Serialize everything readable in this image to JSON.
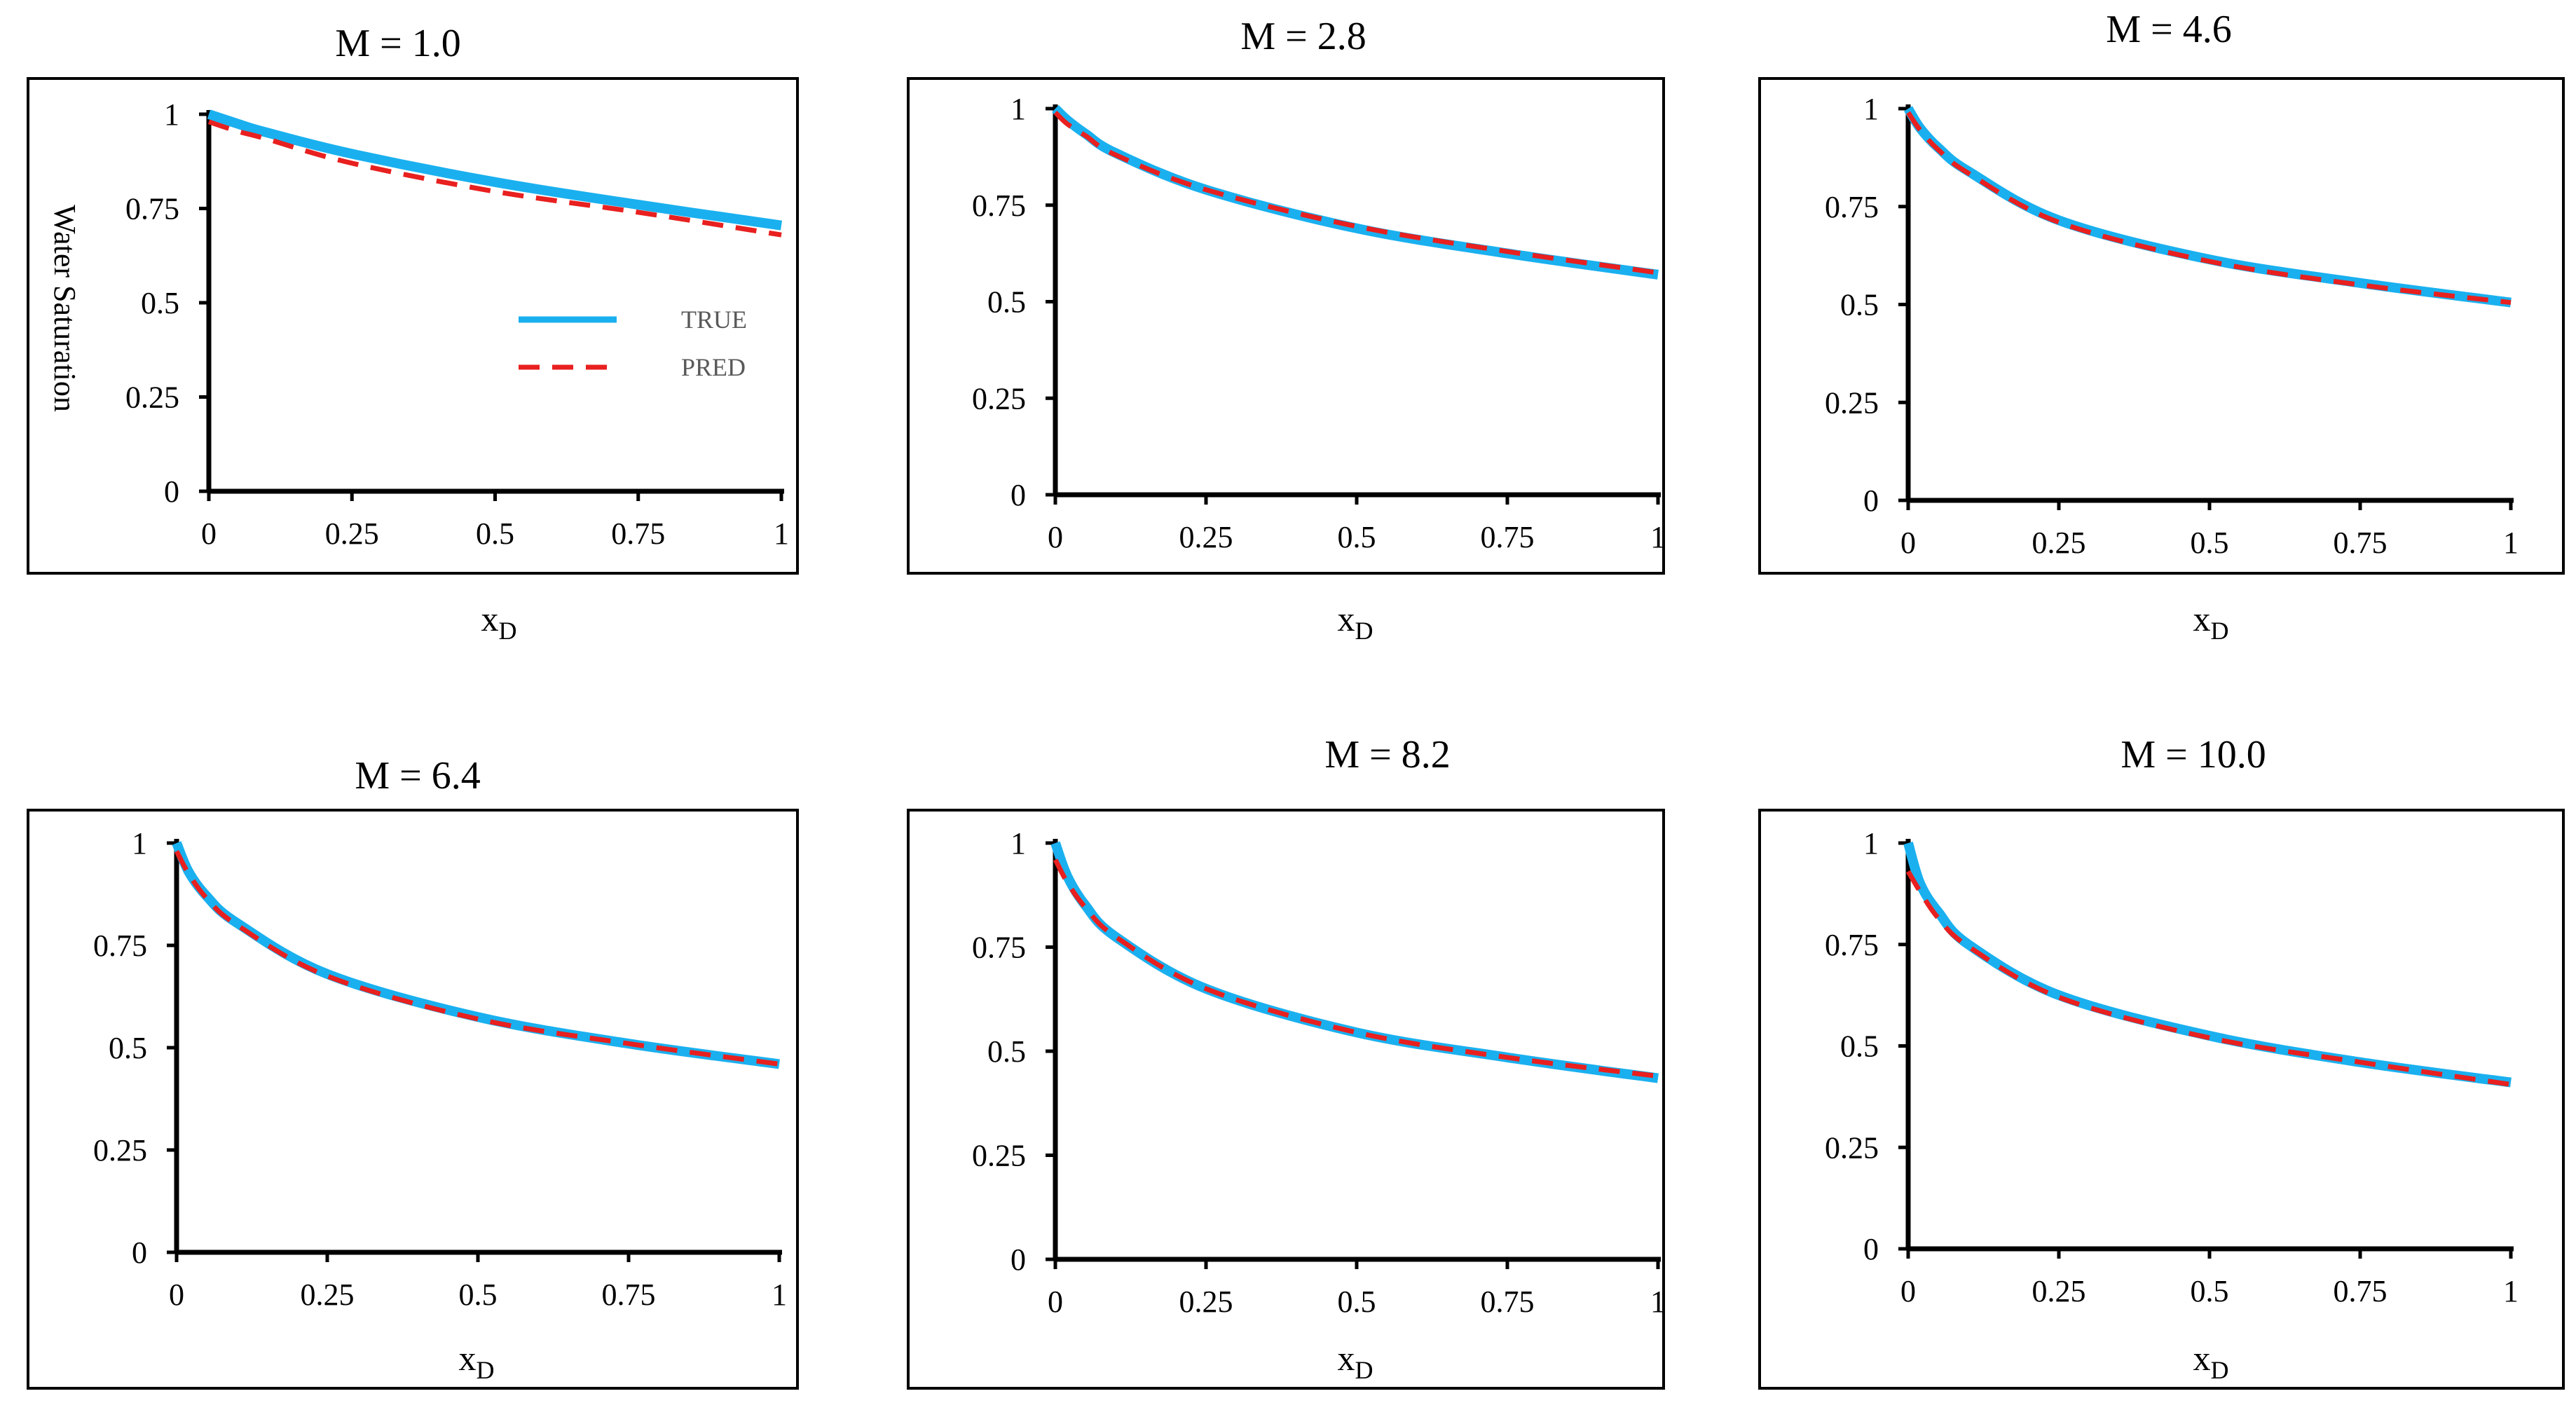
{
  "figure": {
    "name": "water-saturation-profiles"
  },
  "chart_data": [
    {
      "type": "line",
      "title": "M = 1.0",
      "xlabel_main": "x",
      "xlabel_sub": "D",
      "ylabel": "Water Saturation",
      "xlim": [
        0,
        1
      ],
      "ylim": [
        0,
        1
      ],
      "xticks": [
        "0",
        "0.25",
        "0.5",
        "0.75",
        "1"
      ],
      "yticks": [
        "0",
        "0.25",
        "0.5",
        "0.75",
        "1"
      ],
      "legend": {
        "position": "center-right",
        "entries": [
          "TRUE",
          "PRED"
        ]
      },
      "x": [
        0,
        0.05,
        0.1,
        0.25,
        0.5,
        0.75,
        1
      ],
      "series": [
        {
          "name": "TRUE",
          "color": "#1ab0ef",
          "style": "solid",
          "values": [
            1.0,
            0.975,
            0.952,
            0.895,
            0.82,
            0.76,
            0.705
          ]
        },
        {
          "name": "PRED",
          "color": "#e8201f",
          "style": "dashed",
          "values": [
            0.98,
            0.955,
            0.935,
            0.87,
            0.795,
            0.74,
            0.68
          ]
        }
      ]
    },
    {
      "type": "line",
      "title": "M = 2.8",
      "xlabel_main": "x",
      "xlabel_sub": "D",
      "xlim": [
        0,
        1
      ],
      "ylim": [
        0,
        1
      ],
      "xticks": [
        "0",
        "0.25",
        "0.5",
        "0.75",
        "1"
      ],
      "yticks": [
        "0",
        "0.25",
        "0.5",
        "0.75",
        "1"
      ],
      "x": [
        0,
        0.02,
        0.05,
        0.1,
        0.25,
        0.5,
        0.75,
        1
      ],
      "series": [
        {
          "name": "TRUE",
          "color": "#1ab0ef",
          "style": "solid",
          "values": [
            1.0,
            0.97,
            0.935,
            0.885,
            0.79,
            0.69,
            0.625,
            0.57
          ]
        },
        {
          "name": "PRED",
          "color": "#e8201f",
          "style": "dashed",
          "values": [
            0.99,
            0.96,
            0.93,
            0.88,
            0.79,
            0.695,
            0.63,
            0.575
          ]
        }
      ]
    },
    {
      "type": "line",
      "title": "M = 4.6",
      "xlabel_main": "x",
      "xlabel_sub": "D",
      "xlim": [
        0,
        1
      ],
      "ylim": [
        0,
        1
      ],
      "xticks": [
        "0",
        "0.25",
        "0.5",
        "0.75",
        "1"
      ],
      "yticks": [
        "0",
        "0.25",
        "0.5",
        "0.75",
        "1"
      ],
      "x": [
        0,
        0.02,
        0.05,
        0.1,
        0.25,
        0.5,
        0.75,
        1
      ],
      "series": [
        {
          "name": "TRUE",
          "color": "#1ab0ef",
          "style": "solid",
          "values": [
            1.0,
            0.95,
            0.9,
            0.84,
            0.715,
            0.615,
            0.555,
            0.505
          ]
        },
        {
          "name": "PRED",
          "color": "#e8201f",
          "style": "dashed",
          "values": [
            0.99,
            0.945,
            0.895,
            0.835,
            0.71,
            0.61,
            0.55,
            0.505
          ]
        }
      ]
    },
    {
      "type": "line",
      "title": "M = 6.4",
      "xlabel_main": "x",
      "xlabel_sub": "D",
      "xlim": [
        0,
        1
      ],
      "ylim": [
        0,
        1
      ],
      "xticks": [
        "0",
        "0.25",
        "0.5",
        "0.75",
        "1"
      ],
      "yticks": [
        "0",
        "0.25",
        "0.5",
        "0.75",
        "1"
      ],
      "x": [
        0,
        0.02,
        0.05,
        0.1,
        0.25,
        0.5,
        0.75,
        1
      ],
      "series": [
        {
          "name": "TRUE",
          "color": "#1ab0ef",
          "style": "solid",
          "values": [
            1.0,
            0.93,
            0.87,
            0.805,
            0.68,
            0.575,
            0.51,
            0.46
          ]
        },
        {
          "name": "PRED",
          "color": "#e8201f",
          "style": "dashed",
          "values": [
            0.98,
            0.925,
            0.865,
            0.8,
            0.675,
            0.57,
            0.51,
            0.46
          ]
        }
      ]
    },
    {
      "type": "line",
      "title": "M = 8.2",
      "xlabel_main": "x",
      "xlabel_sub": "D",
      "xlim": [
        0,
        1
      ],
      "ylim": [
        0,
        1
      ],
      "xticks": [
        "0",
        "0.25",
        "0.5",
        "0.75",
        "1"
      ],
      "yticks": [
        "0",
        "0.25",
        "0.5",
        "0.75",
        "1"
      ],
      "x": [
        0,
        0.02,
        0.05,
        0.1,
        0.25,
        0.5,
        0.75,
        1
      ],
      "series": [
        {
          "name": "TRUE",
          "color": "#1ab0ef",
          "style": "solid",
          "values": [
            1.0,
            0.92,
            0.85,
            0.775,
            0.65,
            0.545,
            0.485,
            0.435
          ]
        },
        {
          "name": "PRED",
          "color": "#e8201f",
          "style": "dashed",
          "values": [
            0.96,
            0.905,
            0.845,
            0.775,
            0.65,
            0.545,
            0.485,
            0.44
          ]
        }
      ]
    },
    {
      "type": "line",
      "title": "M = 10.0",
      "xlabel_main": "x",
      "xlabel_sub": "D",
      "xlim": [
        0,
        1
      ],
      "ylim": [
        0,
        1
      ],
      "xticks": [
        "0",
        "0.25",
        "0.5",
        "0.75",
        "1"
      ],
      "yticks": [
        "0",
        "0.25",
        "0.5",
        "0.75",
        "1"
      ],
      "x": [
        0,
        0.02,
        0.05,
        0.1,
        0.25,
        0.5,
        0.75,
        1
      ],
      "series": [
        {
          "name": "TRUE",
          "color": "#1ab0ef",
          "style": "solid",
          "values": [
            1.0,
            0.9,
            0.83,
            0.75,
            0.625,
            0.525,
            0.46,
            0.41
          ]
        },
        {
          "name": "PRED",
          "color": "#e8201f",
          "style": "dashed",
          "values": [
            0.93,
            0.88,
            0.815,
            0.745,
            0.62,
            0.52,
            0.46,
            0.405
          ]
        }
      ]
    }
  ]
}
